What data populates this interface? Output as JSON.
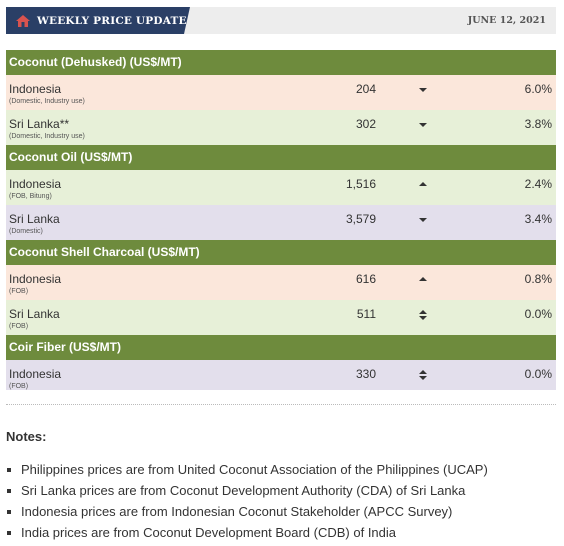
{
  "header": {
    "title": "WEEKLY PRICE UPDATE",
    "date": "JUNE 12, 2021"
  },
  "sections": [
    {
      "title": "Coconut (Dehusked) (US$/MT)",
      "rows": [
        {
          "country": "Indonesia",
          "note": "(Domestic, Industry use)",
          "price": "204",
          "trend": "down",
          "change": "6.0%",
          "bg": "#fbe7db"
        },
        {
          "country": "Sri Lanka**",
          "note": "(Domestic, Industry use)",
          "price": "302",
          "trend": "down",
          "change": "3.8%",
          "bg": "#e7f0d8"
        }
      ]
    },
    {
      "title": "Coconut Oil (US$/MT)",
      "rows": [
        {
          "country": "Indonesia",
          "note": "(FOB, Bitung)",
          "price": "1,516",
          "trend": "up",
          "change": "2.4%",
          "bg": "#e7f0d8"
        },
        {
          "country": "Sri Lanka",
          "note": "(Domestic)",
          "price": "3,579",
          "trend": "down",
          "change": "3.4%",
          "bg": "#e3dfec"
        }
      ]
    },
    {
      "title": "Coconut Shell Charcoal (US$/MT)",
      "rows": [
        {
          "country": "Indonesia",
          "note": "(FOB)",
          "price": "616",
          "trend": "up",
          "change": "0.8%",
          "bg": "#fbe7db"
        },
        {
          "country": "Sri Lanka",
          "note": "(FOB)",
          "price": "511",
          "trend": "flat",
          "change": "0.0%",
          "bg": "#e7f0d8"
        }
      ]
    },
    {
      "title": "Coir Fiber (US$/MT)",
      "rows": [
        {
          "country": "Indonesia",
          "note": "(FOB)",
          "price": "330",
          "trend": "flat",
          "change": "0.0%",
          "bg": "#e3dfec"
        }
      ]
    }
  ],
  "notes": {
    "title": "Notes:",
    "items": [
      "Philippines prices are from United Coconut Association of the Philippines (UCAP)",
      "Sri Lanka prices are from Coconut Development Authority (CDA) of Sri Lanka",
      "Indonesia prices are from Indonesian Coconut Stakeholder (APCC Survey)",
      "India prices are from Coconut Development Board (CDB) of India"
    ]
  },
  "icons": {
    "title": "house-icon",
    "down": "caret-down-icon",
    "up": "caret-up-icon",
    "flat": "up-down-arrows-icon"
  },
  "colors": {
    "header_tab": "#2a3f66",
    "section_bar": "#6e8b3d",
    "peach": "#fbe7db",
    "green": "#e7f0d8",
    "lavender": "#e3dfec"
  }
}
